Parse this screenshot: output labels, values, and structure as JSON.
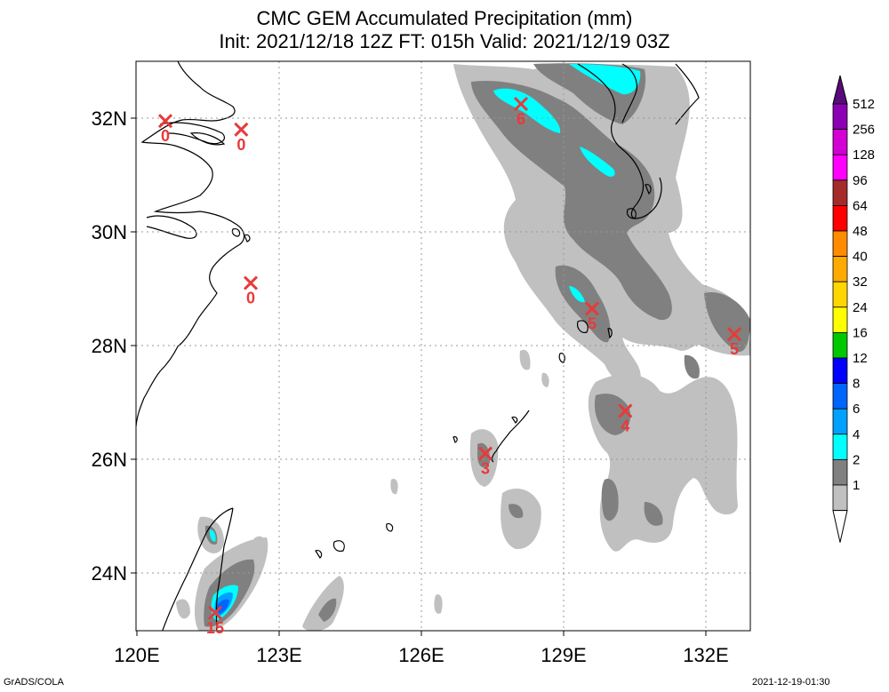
{
  "title_line1": "CMC GEM Accumulated Precipitation (mm)",
  "title_line2": "Init: 2021/12/18 12Z  FT: 015h  Valid: 2021/12/19 03Z",
  "footer_left": "GrADS/COLA",
  "footer_right": "2021-12-19-01:30",
  "lat_ticks": [
    "32N",
    "30N",
    "28N",
    "26N",
    "24N"
  ],
  "lon_ticks": [
    "120E",
    "123E",
    "126E",
    "129E",
    "132E"
  ],
  "colorbar": {
    "levels": [
      "512",
      "256",
      "128",
      "96",
      "64",
      "48",
      "40",
      "32",
      "24",
      "16",
      "12",
      "8",
      "6",
      "4",
      "2",
      "1"
    ],
    "colors": [
      "#5a0a7a",
      "#8c00b4",
      "#d200d2",
      "#ff00ff",
      "#a52a2a",
      "#ff0000",
      "#ff8c00",
      "#ffaa00",
      "#ffd700",
      "#ffff00",
      "#00c800",
      "#0000ff",
      "#0064ff",
      "#00a0ff",
      "#00ffff",
      "#808080",
      "#c0c0c0",
      "#ffffff"
    ]
  },
  "markers": [
    {
      "label": "0",
      "lon": 120.6,
      "lat": 31.95
    },
    {
      "label": "0",
      "lon": 122.2,
      "lat": 31.8
    },
    {
      "label": "0",
      "lon": 122.4,
      "lat": 29.1
    },
    {
      "label": "6",
      "lon": 128.1,
      "lat": 32.25
    },
    {
      "label": "5",
      "lon": 129.6,
      "lat": 28.65
    },
    {
      "label": "5",
      "lon": 132.6,
      "lat": 28.2
    },
    {
      "label": "4",
      "lon": 130.3,
      "lat": 26.85
    },
    {
      "label": "3",
      "lon": 127.35,
      "lat": 26.1
    },
    {
      "label": "15",
      "lon": 121.65,
      "lat": 23.3
    }
  ],
  "colors": {
    "light_gray": "#c0c0c0",
    "dark_gray": "#808080",
    "cyan": "#00ffff",
    "blue": "#0064ff",
    "deep_blue": "#0000ff",
    "marker": "#e83a3a",
    "grid": "#999999",
    "coast": "#000000"
  }
}
